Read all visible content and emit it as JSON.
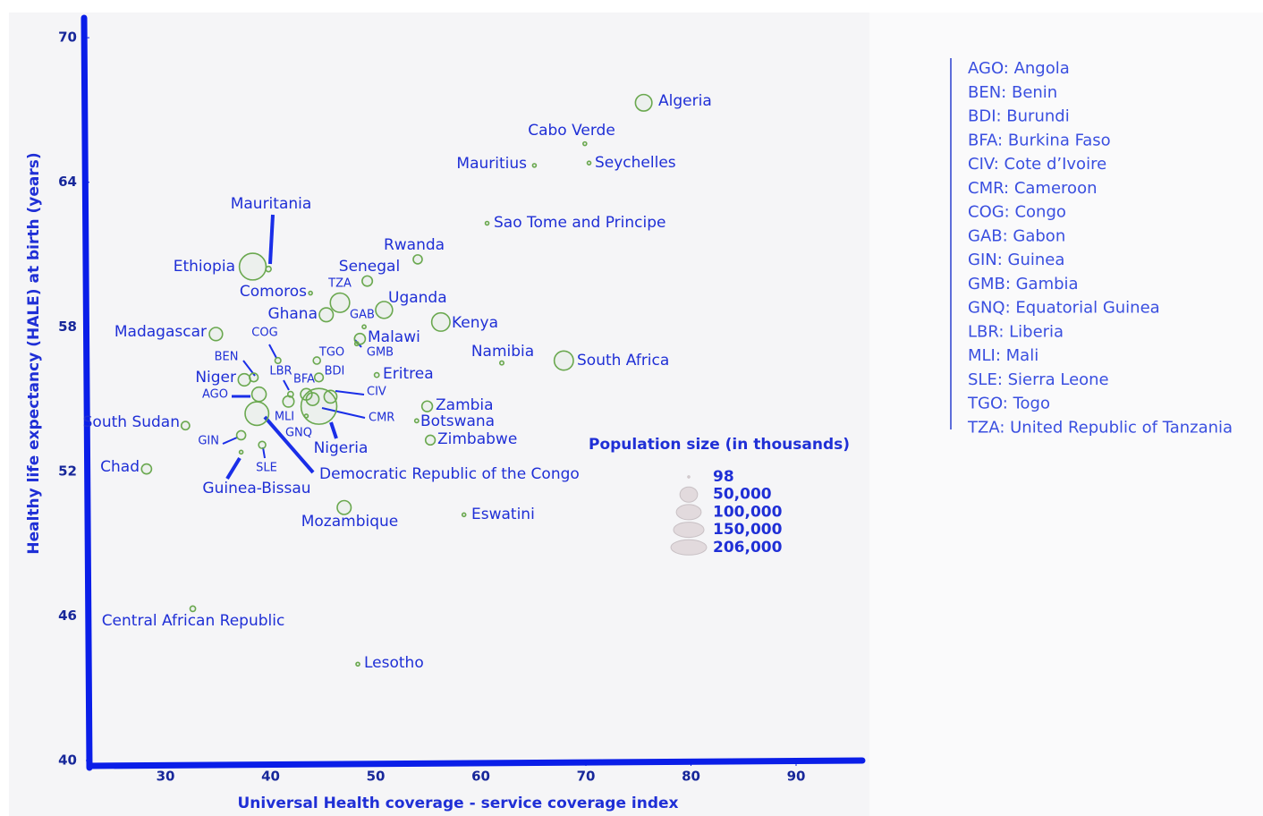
{
  "chart_data": {
    "type": "bubble",
    "xlabel": "Universal Health coverage - service coverage index",
    "ylabel": "Healthy life expectancy (HALE) at birth (years)",
    "xlim": [
      23,
      96
    ],
    "xticks": [
      30,
      40,
      50,
      60,
      70,
      80,
      90
    ],
    "ylim": [
      40,
      70.8
    ],
    "yticks": [
      40,
      46,
      52,
      58,
      64,
      70
    ],
    "color": "#6aa84f",
    "labels": [
      "Algeria",
      "Cabo Verde",
      "Mauritius",
      "Seychelles",
      "Sao Tome and Principe",
      "Mauritania",
      "Ethiopia",
      "Rwanda",
      "Senegal",
      "Comoros",
      "TZA",
      "Uganda",
      "Ghana",
      "GAB",
      "Kenya",
      "Malawi",
      "GMB",
      "Madagascar",
      "COG",
      "Namibia",
      "South Africa",
      "TGO",
      "BEN",
      "Niger",
      "Eritrea",
      "BDI",
      "LBR",
      "BFA",
      "AGO",
      "CIV",
      "CMR",
      "MLI",
      "GNQ",
      "Nigeria",
      "Democratic Republic of the Congo",
      "Zambia",
      "Botswana",
      "Zimbabwe",
      "South Sudan",
      "GIN",
      "SLE",
      "Guinea-Bissau",
      "Chad",
      "Mozambique",
      "Eswatini",
      "Central African Republic",
      "Lesotho"
    ],
    "x": [
      75.5,
      69.9,
      65.1,
      70.3,
      60.6,
      39.8,
      38.3,
      54.0,
      49.2,
      43.8,
      46.6,
      50.8,
      45.3,
      48.9,
      56.2,
      48.5,
      48.2,
      34.8,
      40.7,
      62.0,
      67.9,
      44.4,
      38.4,
      37.5,
      50.1,
      44.6,
      41.9,
      43.4,
      38.9,
      45.7,
      44.0,
      41.7,
      43.4,
      44.6,
      38.7,
      54.9,
      53.9,
      55.2,
      31.9,
      37.2,
      39.2,
      37.2,
      28.2,
      47.0,
      58.4,
      32.6,
      48.3
    ],
    "values": [
      67.3,
      65.6,
      64.7,
      64.8,
      62.3,
      60.4,
      60.5,
      60.8,
      59.9,
      59.4,
      59.0,
      58.7,
      58.5,
      58.0,
      58.2,
      57.5,
      57.3,
      57.7,
      56.6,
      56.5,
      56.6,
      56.6,
      55.9,
      55.8,
      56.0,
      55.9,
      55.2,
      55.2,
      55.2,
      55.1,
      55.0,
      54.9,
      54.3,
      54.7,
      54.4,
      54.7,
      54.1,
      53.3,
      53.9,
      53.5,
      53.1,
      52.8,
      52.1,
      50.5,
      50.2,
      46.3,
      44.0
    ],
    "sizes": [
      44000,
      550,
      1270,
      98,
      220,
      4600,
      115000,
      13000,
      17000,
      870,
      60000,
      46000,
      31000,
      2200,
      54000,
      19000,
      2400,
      28000,
      5500,
      2500,
      59000,
      8300,
      12000,
      24000,
      3500,
      12000,
      5000,
      21000,
      33000,
      26000,
      26000,
      20000,
      1400,
      206000,
      90000,
      18000,
      2400,
      15000,
      11000,
      13000,
      8000,
      2000,
      16000,
      31000,
      1160,
      4800,
      2100
    ],
    "size_legend": {
      "title": "Population size (in thousands)",
      "values": [
        98,
        {
          "value": 50000,
          "label": "50,000"
        },
        {
          "value": 100000,
          "label": "100,000"
        },
        {
          "value": 150000,
          "label": "150,000"
        },
        {
          "value": 206000,
          "label": "206,000"
        }
      ]
    },
    "abbreviations": [
      "AGO: Angola",
      "BEN: Benin",
      "BDI: Burundi",
      "BFA: Burkina Faso",
      "CIV: Cote d’Ivoire",
      "CMR: Cameroon",
      "COG: Congo",
      "GAB: Gabon",
      "GIN: Guinea",
      "GMB: Gambia",
      "GNQ: Equatorial Guinea",
      "LBR: Liberia",
      "MLI: Mali",
      "SLE: Sierra Leone",
      "TGO: Togo",
      "TZA: United Republic of Tanzania"
    ]
  }
}
